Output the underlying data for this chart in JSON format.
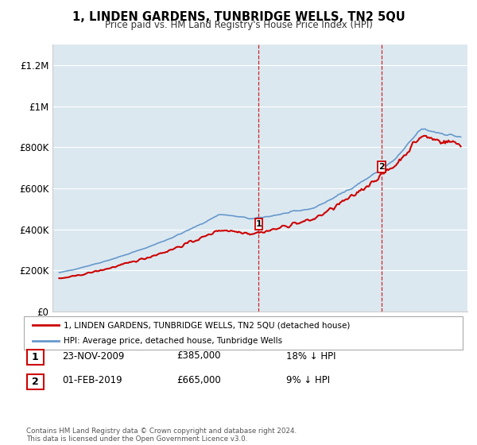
{
  "title": "1, LINDEN GARDENS, TUNBRIDGE WELLS, TN2 5QU",
  "subtitle": "Price paid vs. HM Land Registry's House Price Index (HPI)",
  "ylabel_ticks": [
    "£0",
    "£200K",
    "£400K",
    "£600K",
    "£800K",
    "£1M",
    "£1.2M"
  ],
  "ytick_values": [
    0,
    200000,
    400000,
    600000,
    800000,
    1000000,
    1200000
  ],
  "ylim": [
    0,
    1300000
  ],
  "xlim_start": 1994.5,
  "xlim_end": 2025.5,
  "transaction1_date": 2009.9,
  "transaction1_label": "1",
  "transaction1_price": 385000,
  "transaction1_text": "23-NOV-2009",
  "transaction1_price_str": "£385,000",
  "transaction1_pct": "18% ↓ HPI",
  "transaction2_date": 2019.08,
  "transaction2_label": "2",
  "transaction2_price": 665000,
  "transaction2_text": "01-FEB-2019",
  "transaction2_price_str": "£665,000",
  "transaction2_pct": "9% ↓ HPI",
  "house_color": "#cc0000",
  "hpi_color": "#6699cc",
  "legend1": "1, LINDEN GARDENS, TUNBRIDGE WELLS, TN2 5QU (detached house)",
  "legend2": "HPI: Average price, detached house, Tunbridge Wells",
  "footer": "Contains HM Land Registry data © Crown copyright and database right 2024.\nThis data is licensed under the Open Government Licence v3.0.",
  "plot_bg": "#dce8f0"
}
